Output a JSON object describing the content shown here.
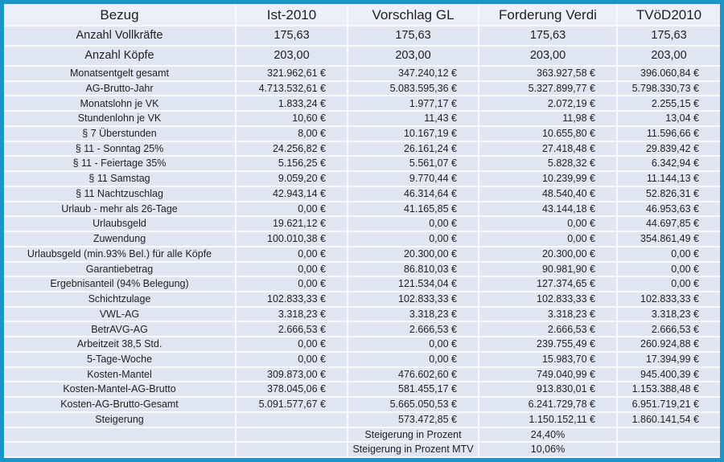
{
  "colors": {
    "border": "#1d94c6",
    "row_background": "#e0e6f1",
    "header_background": "#eceff7",
    "separator": "#f7f9fc",
    "text": "#1f1f1f"
  },
  "table": {
    "columns": [
      "Bezug",
      "Ist-2010",
      "Vorschlag GL",
      "Forderung Verdi",
      "TVöD2010"
    ],
    "rows": [
      {
        "kind": "big",
        "label": "Anzahl Vollkräfte",
        "values": [
          "175,63",
          "175,63",
          "175,63",
          "175,63"
        ]
      },
      {
        "kind": "big",
        "label": "Anzahl Köpfe",
        "values": [
          "203,00",
          "203,00",
          "203,00",
          "203,00"
        ]
      },
      {
        "kind": "data",
        "label": "Monatsentgelt gesamt",
        "values": [
          "321.962,61 €",
          "347.240,12 €",
          "363.927,58 €",
          "396.060,84 €"
        ]
      },
      {
        "kind": "data",
        "label": "AG-Brutto-Jahr",
        "values": [
          "4.713.532,61 €",
          "5.083.595,36 €",
          "5.327.899,77 €",
          "5.798.330,73 €"
        ]
      },
      {
        "kind": "data",
        "label": "Monatslohn je VK",
        "values": [
          "1.833,24 €",
          "1.977,17 €",
          "2.072,19 €",
          "2.255,15 €"
        ]
      },
      {
        "kind": "data",
        "label": "Stundenlohn je VK",
        "values": [
          "10,60 €",
          "11,43 €",
          "11,98 €",
          "13,04 €"
        ]
      },
      {
        "kind": "data",
        "label": "§ 7 Überstunden",
        "values": [
          "8,00 €",
          "10.167,19 €",
          "10.655,80 €",
          "11.596,66 €"
        ]
      },
      {
        "kind": "data",
        "label": "§ 11 - Sonntag 25%",
        "values": [
          "24.256,82 €",
          "26.161,24 €",
          "27.418,48 €",
          "29.839,42 €"
        ]
      },
      {
        "kind": "data",
        "label": "§ 11 - Feiertage 35%",
        "values": [
          "5.156,25 €",
          "5.561,07 €",
          "5.828,32 €",
          "6.342,94 €"
        ]
      },
      {
        "kind": "data",
        "label": "§ 11 Samstag",
        "values": [
          "9.059,20 €",
          "9.770,44 €",
          "10.239,99 €",
          "11.144,13 €"
        ]
      },
      {
        "kind": "data",
        "label": "§ 11 Nachtzuschlag",
        "values": [
          "42.943,14 €",
          "46.314,64 €",
          "48.540,40 €",
          "52.826,31 €"
        ]
      },
      {
        "kind": "data",
        "label": "Urlaub - mehr als 26-Tage",
        "values": [
          "0,00 €",
          "41.165,85 €",
          "43.144,18 €",
          "46.953,63 €"
        ]
      },
      {
        "kind": "data",
        "label": "Urlaubsgeld",
        "values": [
          "19.621,12 €",
          "0,00 €",
          "0,00 €",
          "44.697,85 €"
        ]
      },
      {
        "kind": "data",
        "label": "Zuwendung",
        "values": [
          "100.010,38 €",
          "0,00 €",
          "0,00 €",
          "354.861,49 €"
        ]
      },
      {
        "kind": "data",
        "label": "Urlaubsgeld (min.93% Bel.) für alle Köpfe",
        "values": [
          "0,00 €",
          "20.300,00 €",
          "20.300,00 €",
          "0,00 €"
        ]
      },
      {
        "kind": "data",
        "label": "Garantiebetrag",
        "values": [
          "0,00 €",
          "86.810,03 €",
          "90.981,90 €",
          "0,00 €"
        ]
      },
      {
        "kind": "data",
        "label": "Ergebnisanteil (94% Belegung)",
        "values": [
          "0,00 €",
          "121.534,04 €",
          "127.374,65 €",
          "0,00 €"
        ]
      },
      {
        "kind": "data",
        "label": "Schichtzulage",
        "values": [
          "102.833,33 €",
          "102.833,33 €",
          "102.833,33 €",
          "102.833,33 €"
        ]
      },
      {
        "kind": "data",
        "label": "VWL-AG",
        "values": [
          "3.318,23 €",
          "3.318,23 €",
          "3.318,23 €",
          "3.318,23 €"
        ]
      },
      {
        "kind": "data",
        "label": "BetrAVG-AG",
        "values": [
          "2.666,53 €",
          "2.666,53 €",
          "2.666,53 €",
          "2.666,53 €"
        ]
      },
      {
        "kind": "data",
        "label": "Arbeitzeit 38,5 Std.",
        "values": [
          "0,00 €",
          "0,00 €",
          "239.755,49 €",
          "260.924,88 €"
        ]
      },
      {
        "kind": "data",
        "label": "5-Tage-Woche",
        "values": [
          "0,00 €",
          "0,00 €",
          "15.983,70 €",
          "17.394,99 €"
        ]
      },
      {
        "kind": "data",
        "label": "Kosten-Mantel",
        "values": [
          "309.873,00 €",
          "476.602,60 €",
          "749.040,99 €",
          "945.400,39 €"
        ]
      },
      {
        "kind": "data",
        "label": "Kosten-Mantel-AG-Brutto",
        "values": [
          "378.045,06 €",
          "581.455,17 €",
          "913.830,01 €",
          "1.153.388,48 €"
        ]
      },
      {
        "kind": "data",
        "label": "Kosten-AG-Brutto-Gesamt",
        "values": [
          "5.091.577,67 €",
          "5.665.050,53 €",
          "6.241.729,78 €",
          "6.951.719,21 €"
        ]
      },
      {
        "kind": "data",
        "label": "Steigerung",
        "values": [
          "",
          "573.472,85 €",
          "1.150.152,11 €",
          "1.860.141,54 €"
        ]
      },
      {
        "kind": "footer",
        "label": "",
        "values": [
          "",
          "Steigerung in Prozent",
          "24,40%",
          ""
        ]
      },
      {
        "kind": "footer",
        "label": "",
        "values": [
          "",
          "Steigerung in Prozent MTV",
          "10,06%",
          ""
        ]
      }
    ]
  }
}
